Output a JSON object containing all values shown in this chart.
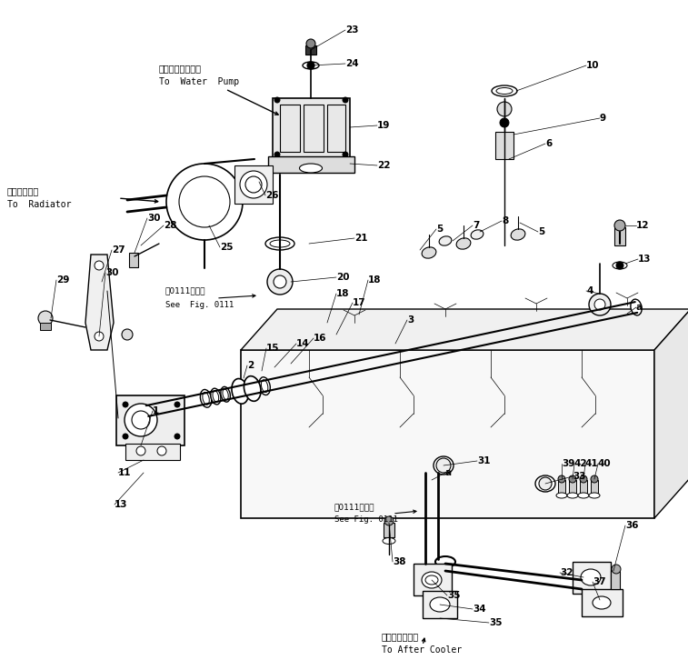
{
  "bg_color": "#ffffff",
  "line_color": "#000000",
  "figsize": [
    7.57,
    7.37
  ],
  "dpi": 100,
  "labels": {
    "water_pump_jp": "ウォータポンプへ",
    "water_pump_en": "To  Water  Pump",
    "radiator_jp": "ラジエータへ",
    "radiator_en": "To  Radiator",
    "see_fig_jp1": "図0111図参照",
    "see_fig_en1": "See  Fig. 0111",
    "see_fig_jp2": "図0111図参照",
    "see_fig_en2": "See Fig. 0111",
    "after_cooler_jp": "アフタクーラへ",
    "after_cooler_en": "To After Cooler"
  }
}
